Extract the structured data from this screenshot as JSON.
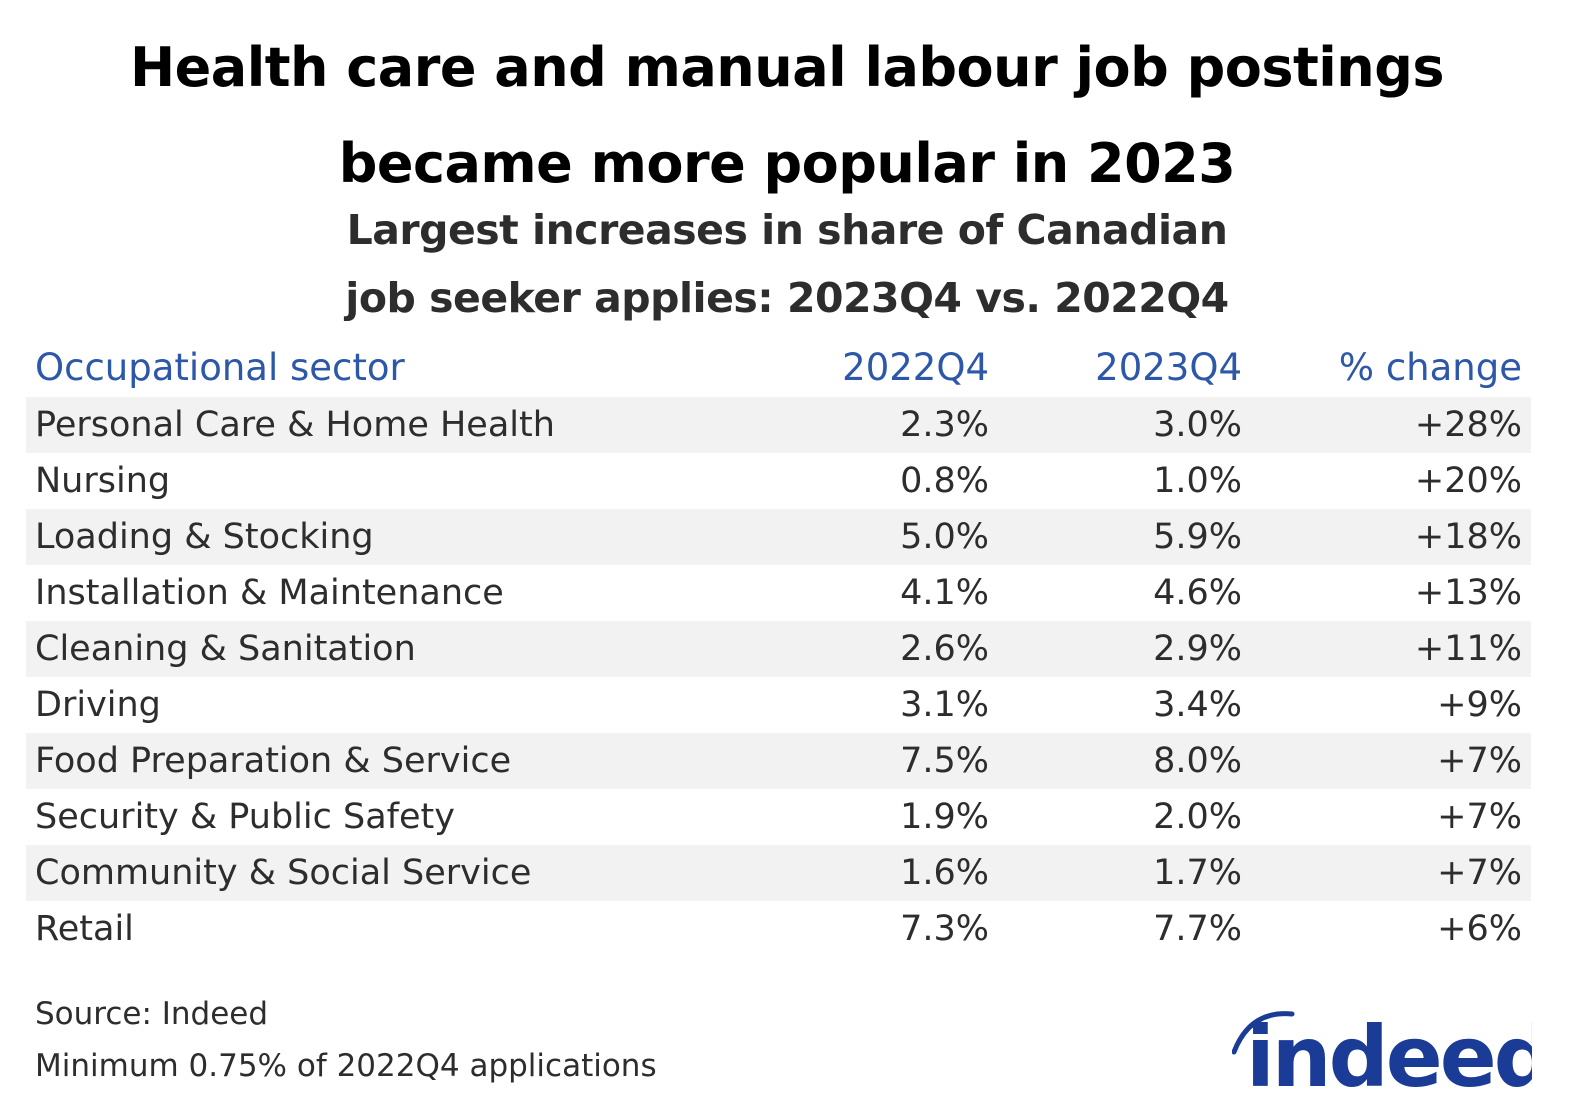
{
  "title_lines": [
    "Health care and manual labour job postings",
    "became more popular in 2023"
  ],
  "subtitle_lines": [
    "Largest increases in share of Canadian",
    "job seeker applies: 2023Q4 vs. 2022Q4"
  ],
  "colors": {
    "header": "#2d57a8",
    "row_shade": "#f2f2f2",
    "logo": "#1a3c96"
  },
  "chart_data": {
    "type": "table",
    "columns": [
      "Occupational sector",
      "2022Q4",
      "2023Q4",
      "% change"
    ],
    "rows": [
      [
        "Personal Care & Home Health",
        "2.3%",
        "3.0%",
        "+28%"
      ],
      [
        "Nursing",
        "0.8%",
        "1.0%",
        "+20%"
      ],
      [
        "Loading & Stocking",
        "5.0%",
        "5.9%",
        "+18%"
      ],
      [
        "Installation & Maintenance",
        "4.1%",
        "4.6%",
        "+13%"
      ],
      [
        "Cleaning & Sanitation",
        "2.6%",
        "2.9%",
        "+11%"
      ],
      [
        "Driving",
        "3.1%",
        "3.4%",
        "+9%"
      ],
      [
        "Food Preparation & Service",
        "7.5%",
        "8.0%",
        "+7%"
      ],
      [
        "Security & Public Safety",
        "1.9%",
        "2.0%",
        "+7%"
      ],
      [
        "Community & Social Service",
        "1.6%",
        "1.7%",
        "+7%"
      ],
      [
        "Retail",
        "7.3%",
        "7.7%",
        "+6%"
      ]
    ]
  },
  "footer": {
    "source": "Source: Indeed",
    "note": "Minimum 0.75% of 2022Q4 applications"
  },
  "logo": {
    "text": "indeed"
  }
}
